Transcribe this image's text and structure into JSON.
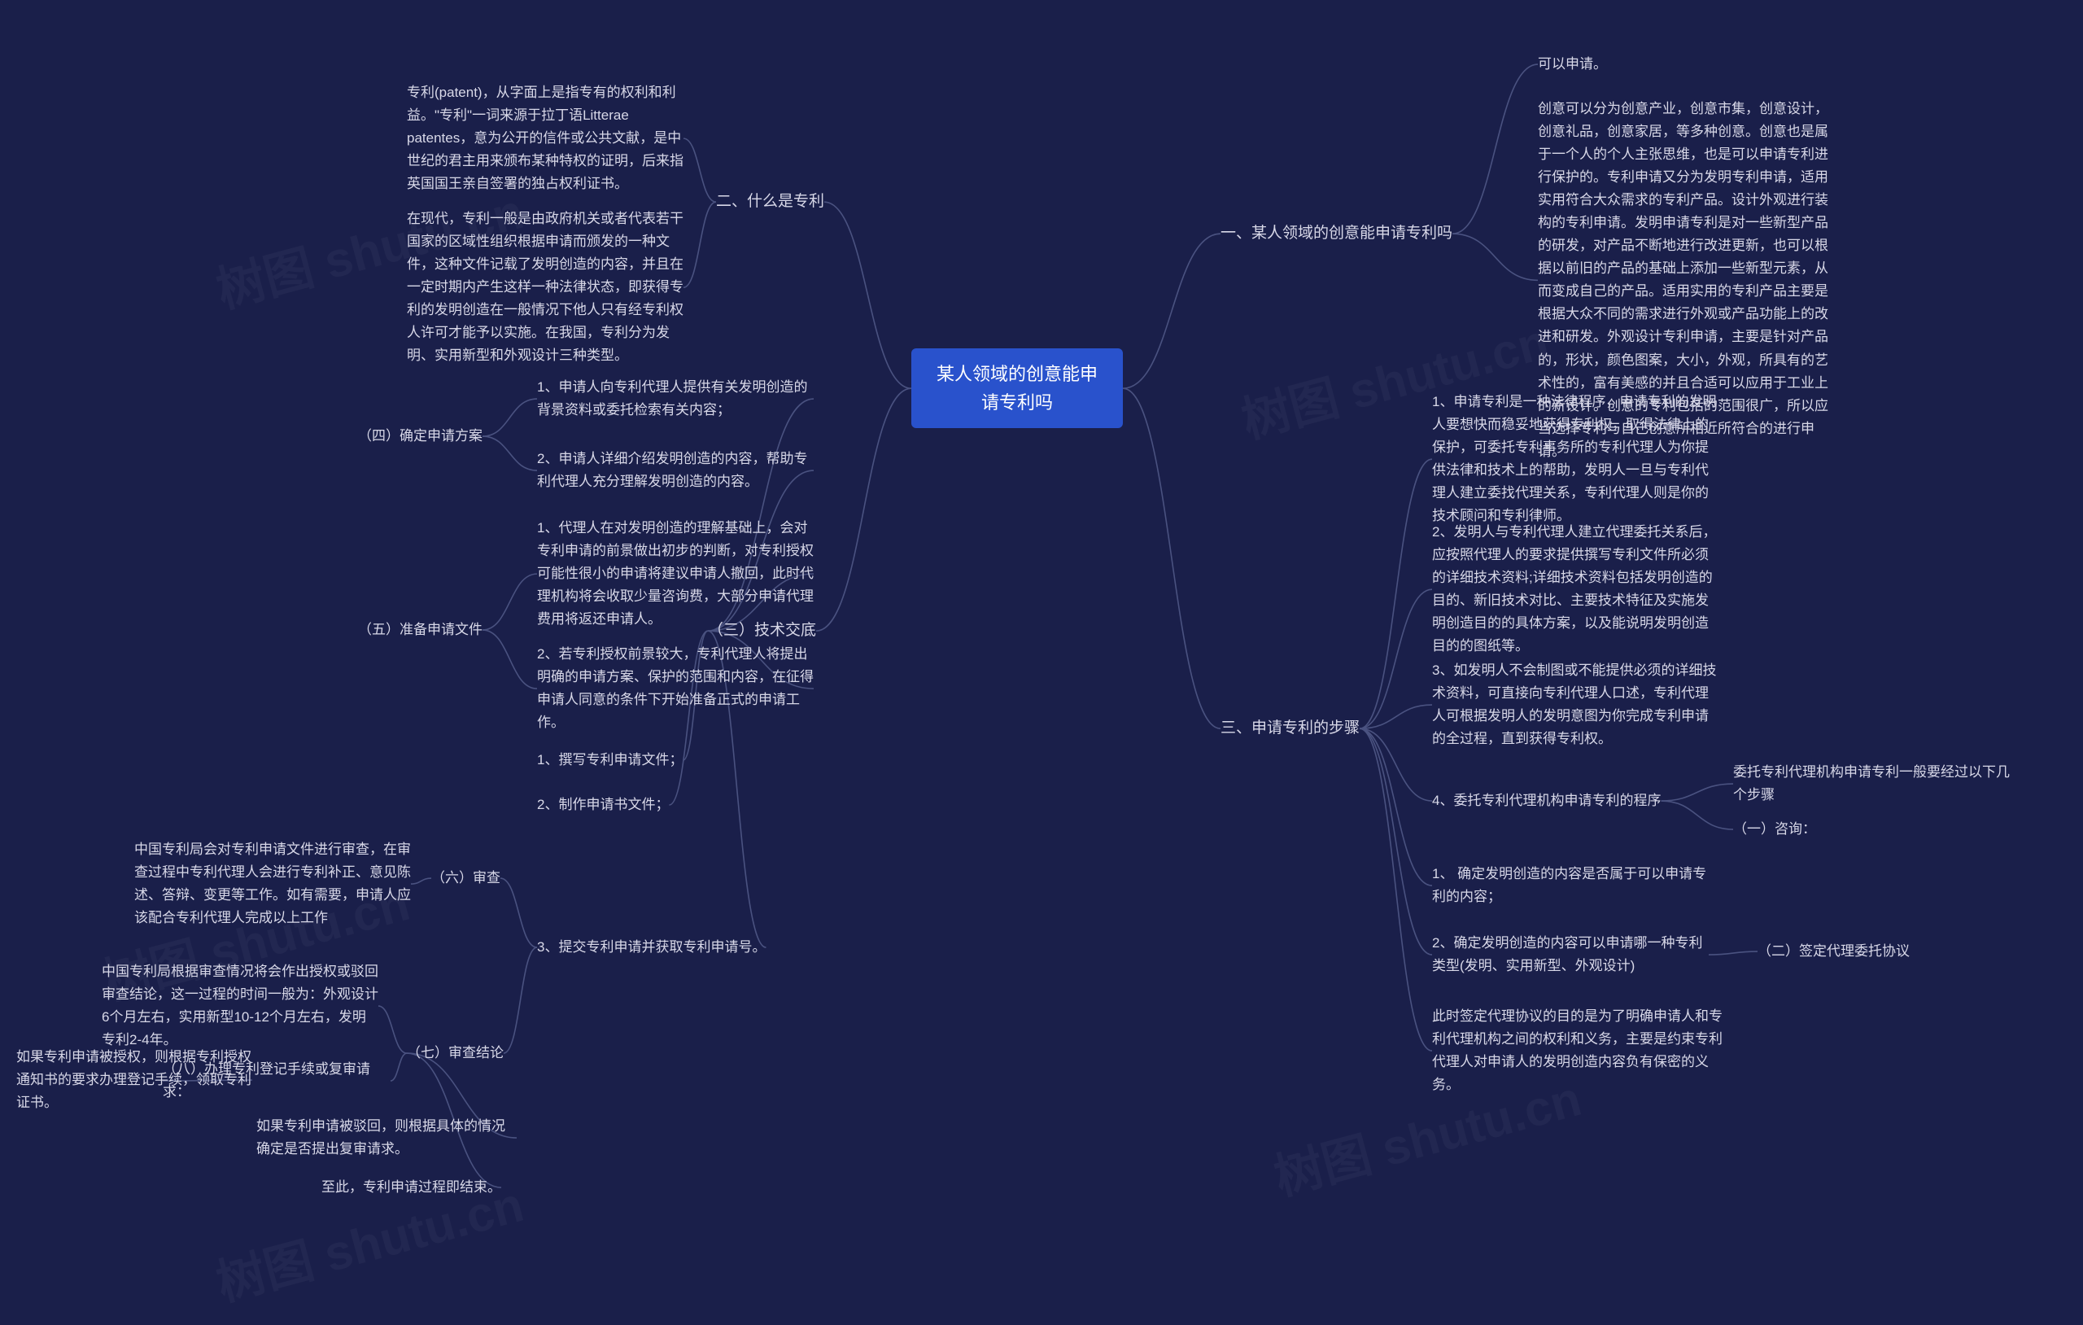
{
  "colors": {
    "background": "#1a1f4a",
    "text": "#d8d8e8",
    "root_bg": "#2952cc",
    "root_text": "#ffffff",
    "connector": "#4a5280",
    "watermark": "rgba(255,255,255,0.04)"
  },
  "watermark_text": "树图 shutu.cn",
  "root": {
    "text": "某人领域的创意能申请专利吗"
  },
  "right": {
    "b1": {
      "label": "一、某人领域的创意能申请专利吗",
      "leaf1": "可以申请。",
      "leaf2": "创意可以分为创意产业，创意市集，创意设计，创意礼品，创意家居，等多种创意。创意也是属于一个人的个人主张思维，也是可以申请专利进行保护的。专利申请又分为发明专利申请，适用实用符合大众需求的专利产品。设计外观进行装构的专利申请。发明申请专利是对一些新型产品的研发，对产品不断地进行改进更新，也可以根据以前旧的产品的基础上添加一些新型元素，从而变成自己的产品。适用实用的专利产品主要是根据大众不同的需求进行外观或产品功能上的改进和研发。外观设计专利申请，主要是针对产品的，形状，颜色图案，大小，外观，所具有的艺术性的，富有美感的并且合适可以应用于工业上的新设计。创意的专利包括的范围很广，所以应当选择专利与自己创意所相近所符合的进行申请。"
    },
    "b3": {
      "label": "三、申请专利的步骤",
      "leaf1": "1、申请专利是一种法律程序，申请专利的发明人要想快而稳妥地获得专利权，取得法律上的保护，可委托专利事务所的专利代理人为你提供法律和技术上的帮助，发明人一旦与专利代理人建立委找代理关系，专利代理人则是你的技术顾问和专利律师。",
      "leaf2": "2、发明人与专利代理人建立代理委托关系后，应按照代理人的要求提供撰写专利文件所必须的详细技术资料;详细技术资料包括发明创造的目的、新旧技术对比、主要技术特征及实施发明创造目的的具体方案，以及能说明发明创造目的的图纸等。",
      "leaf3": "3、如发明人不会制图或不能提供必须的详细技术资料，可直接向专利代理人口述，专利代理人可根据发明人的发明意图为你完成专利申请的全过程，直到获得专利权。",
      "sub4": {
        "label": "4、委托专利代理机构申请专利的程序",
        "leaf_a": "委托专利代理机构申请专利一般要经过以下几个步骤",
        "leaf_b": "（一）咨询：",
        "s1": "1、 确定发明创造的内容是否属于可以申请专利的内容；",
        "s2": "2、确定发明创造的内容可以申请哪一种专利类型(发明、实用新型、外观设计)",
        "s2_label": "（二）签定代理委托协议",
        "s3": "此时签定代理协议的目的是为了明确申请人和专利代理机构之间的权利和义务，主要是约束专利代理人对申请人的发明创造内容负有保密的义务。"
      }
    }
  },
  "left": {
    "b2": {
      "label": "二、什么是专利",
      "leaf1": "专利(patent)，从字面上是指专有的权利和利益。\"专利\"一词来源于拉丁语Litterae patentes，意为公开的信件或公共文献，是中世纪的君主用来颁布某种特权的证明，后来指英国国王亲自签署的独占权利证书。",
      "leaf2": "在现代，专利一般是由政府机关或者代表若干国家的区域性组织根据申请而颁发的一种文件，这种文件记载了发明创造的内容，并且在一定时期内产生这样一种法律状态，即获得专利的发明创造在一般情况下他人只有经专利权人许可才能予以实施。在我国，专利分为发明、实用新型和外观设计三种类型。"
    },
    "b3_left": {
      "label": "（三）技术交底",
      "sub4": {
        "label": "（四）确定申请方案",
        "leaf1": "1、申请人向专利代理人提供有关发明创造的背景资料或委托检索有关内容；",
        "leaf2": "2、申请人详细介绍发明创造的内容，帮助专利代理人充分理解发明创造的内容。"
      },
      "sub5": {
        "label": "（五）准备申请文件",
        "leaf1": "1、代理人在对发明创造的理解基础上，会对专利申请的前景做出初步的判断，对专利授权可能性很小的申请将建议申请人撤回，此时代理机构将会收取少量咨询费，大部分申请代理费用将返还申请人。",
        "leaf2": "2、若专利授权前景较大，专利代理人将提出明确的申请方案、保护的范围和内容，在征得申请人同意的条件下开始准备正式的申请工作。"
      },
      "leaf_c1": "1、撰写专利申请文件；",
      "leaf_c2": "2、制作申请书文件；",
      "leaf_c3": {
        "label": "3、提交专利申请并获取专利申请号。",
        "sub6": {
          "label": "（六）审查",
          "text": "中国专利局会对专利申请文件进行审查，在审查过程中专利代理人会进行专利补正、意见陈述、答辩、变更等工作。如有需要，申请人应该配合专利代理人完成以上工作"
        },
        "sub7": {
          "label": "（七）审查结论",
          "text": "中国专利局根据审查情况将会作出授权或驳回审查结论，这一过程的时间一般为：外观设计6个月左右，实用新型10-12个月左右，发明专利2-4年。",
          "sub8": {
            "label": "（八）办理专利登记手续或复审请求：",
            "leaf1": "如果专利申请被授权，则根据专利授权通知书的要求办理登记手续，领取专利证书。",
            "leaf2": "如果专利申请被驳回，则根据具体的情况确定是否提出复审请求。",
            "leaf3": "至此，专利申请过程即结束。"
          }
        }
      }
    }
  }
}
